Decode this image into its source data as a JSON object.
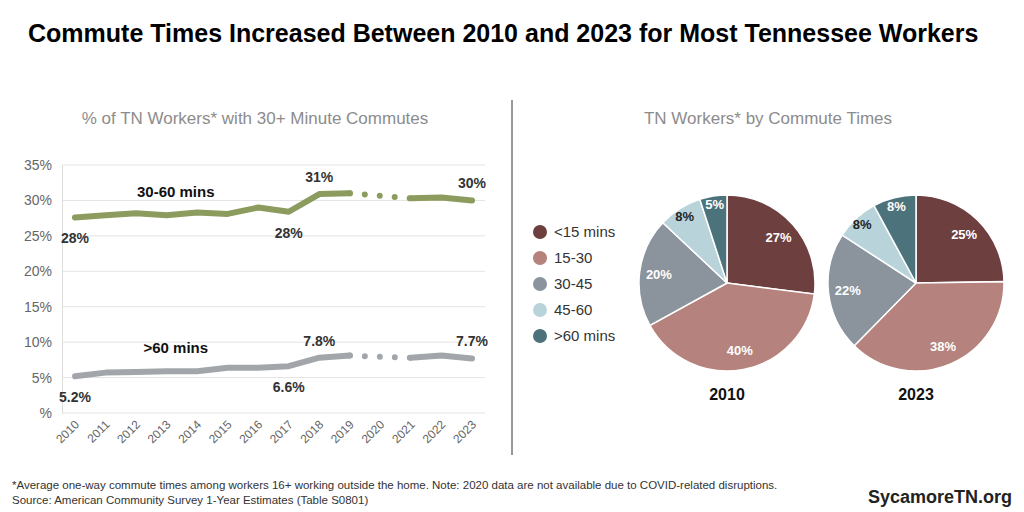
{
  "title": "Commute Times Increased Between 2010 and 2023 for Most Tennessee Workers",
  "footnote": "*Average one-way commute times among workers 16+ working outside the home. Note: 2020 data are not available due to COVID-related disruptions.",
  "source": "Source: American Community Survey 1-Year Estimates (Table S0801)",
  "credit": "SycamoreTN.org",
  "chart_data": [
    {
      "type": "line",
      "title": "% of TN Workers* with 30+ Minute Commutes",
      "categories": [
        "2010",
        "2011",
        "2012",
        "2013",
        "2014",
        "2015",
        "2016",
        "2017",
        "2018",
        "2019",
        "2020",
        "2021",
        "2022",
        "2023"
      ],
      "series": [
        {
          "name": "30-60 mins",
          "color": "#8c9b5e",
          "values": [
            27.6,
            27.9,
            28.2,
            27.9,
            28.3,
            28.1,
            29.0,
            28.4,
            30.9,
            31.0,
            null,
            30.3,
            30.4,
            30.0
          ],
          "value_labels": [
            "28%",
            null,
            null,
            null,
            null,
            null,
            null,
            "28%",
            "31%",
            null,
            null,
            null,
            null,
            "30%"
          ]
        },
        {
          "name": ">60 mins",
          "color": "#a2a6ab",
          "values": [
            5.2,
            5.7,
            5.8,
            5.9,
            5.9,
            6.4,
            6.4,
            6.6,
            7.8,
            8.1,
            null,
            7.8,
            8.1,
            7.7
          ],
          "value_labels": [
            "5.2%",
            null,
            null,
            null,
            null,
            null,
            null,
            "6.6%",
            "7.8%",
            null,
            null,
            null,
            null,
            "7.7%"
          ]
        }
      ],
      "ylim": [
        0,
        35
      ],
      "yticks": [
        {
          "value": 0,
          "label": "%"
        },
        {
          "value": 5,
          "label": "5%"
        },
        {
          "value": 10,
          "label": "10%"
        },
        {
          "value": 15,
          "label": "15%"
        },
        {
          "value": 20,
          "label": "20%"
        },
        {
          "value": 25,
          "label": "25%"
        },
        {
          "value": 30,
          "label": "30%"
        },
        {
          "value": 35,
          "label": "35%"
        }
      ],
      "grid": true,
      "data_labels": true
    },
    {
      "type": "pie",
      "title": "TN Workers* by Commute Times",
      "categories": [
        "<15 mins",
        "15-30",
        "30-45",
        "45-60",
        ">60 mins"
      ],
      "colors": [
        "#6d3f3f",
        "#b5827d",
        "#8b939c",
        "#b9d3db",
        "#4c737b"
      ],
      "series": [
        {
          "name": "2010",
          "values": [
            27,
            40,
            20,
            8,
            5
          ],
          "value_labels": [
            "27%",
            "40%",
            "20%",
            "8%",
            "5%"
          ]
        },
        {
          "name": "2023",
          "values": [
            25,
            38,
            22,
            8,
            8
          ],
          "value_labels": [
            "25%",
            "38%",
            "22%",
            "8%",
            "8%"
          ]
        }
      ],
      "legend": "left",
      "data_labels": true
    }
  ]
}
